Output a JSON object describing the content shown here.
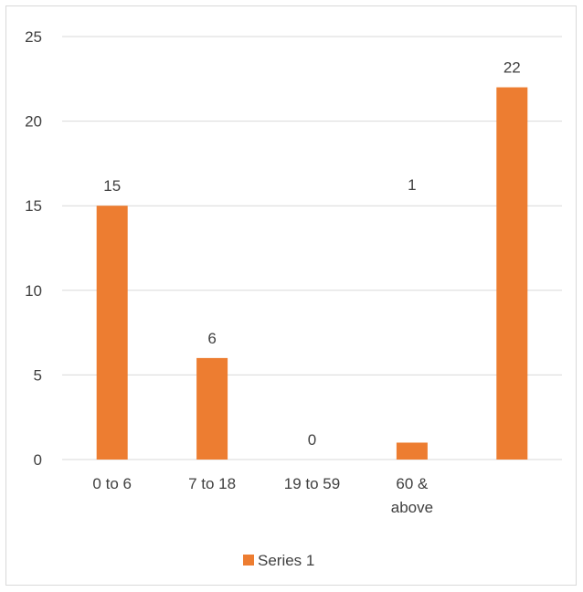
{
  "chart_data": {
    "type": "bar",
    "categories": [
      "0 to 6",
      "7 to 18",
      "19 to 59",
      "60 & above",
      ""
    ],
    "series": [
      {
        "name": "Series 1",
        "values": [
          15,
          6,
          0,
          1,
          22
        ],
        "color": "#ed7d31"
      }
    ],
    "data_labels": [
      "15",
      "6",
      "0",
      "1",
      "22"
    ],
    "yticks": [
      "0",
      "5",
      "10",
      "15",
      "20",
      "25"
    ],
    "ylim": [
      0,
      25
    ],
    "grid": true,
    "legend_position": "bottom",
    "gridline_color": "#d9d9d9",
    "text_color": "#404040"
  }
}
